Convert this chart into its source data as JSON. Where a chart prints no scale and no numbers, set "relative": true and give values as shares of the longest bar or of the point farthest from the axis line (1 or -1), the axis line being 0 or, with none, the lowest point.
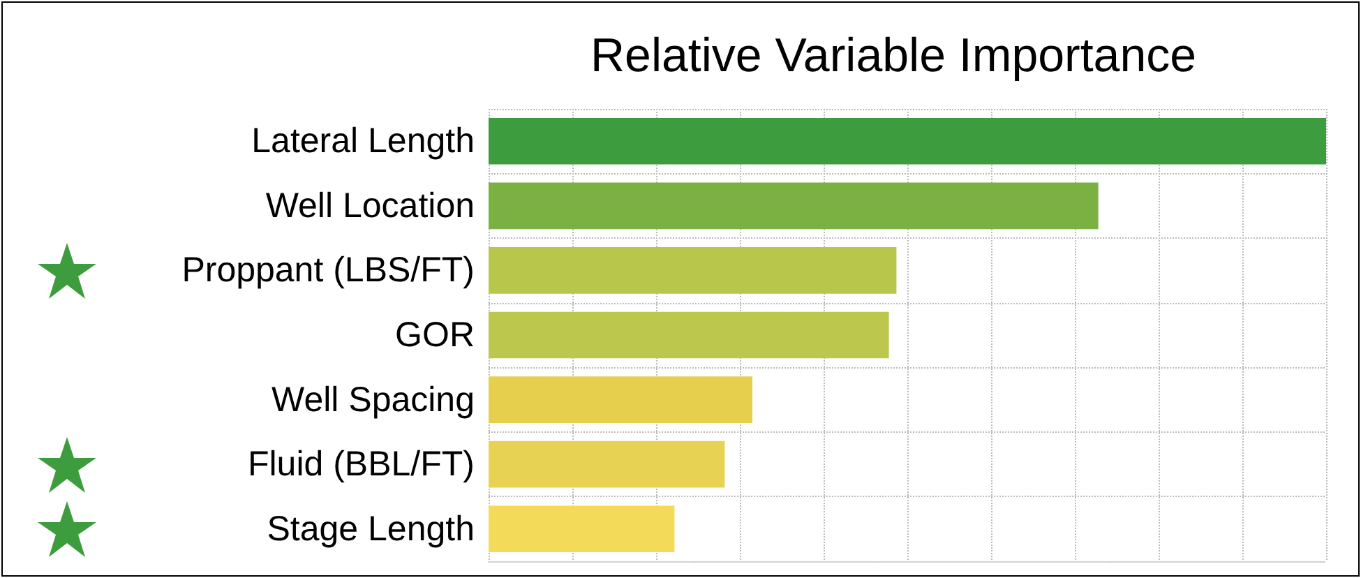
{
  "chart_data": {
    "type": "bar",
    "orientation": "horizontal",
    "relative": true,
    "title": "Relative Variable Importance",
    "categories": [
      "Lateral Length",
      "Well Location",
      "Proppant (LBS/FT)",
      "GOR",
      "Well Spacing",
      "Fluid (BBL/FT)",
      "Stage Length"
    ],
    "values": [
      1,
      0.728,
      0.487,
      0.478,
      0.315,
      0.282,
      0.222
    ],
    "colors": [
      "#3d9c3d",
      "#7bb042",
      "#b8c64c",
      "#bcc74e",
      "#e5cf4c",
      "#e8d253",
      "#f3da58"
    ],
    "grid": true
  }
}
